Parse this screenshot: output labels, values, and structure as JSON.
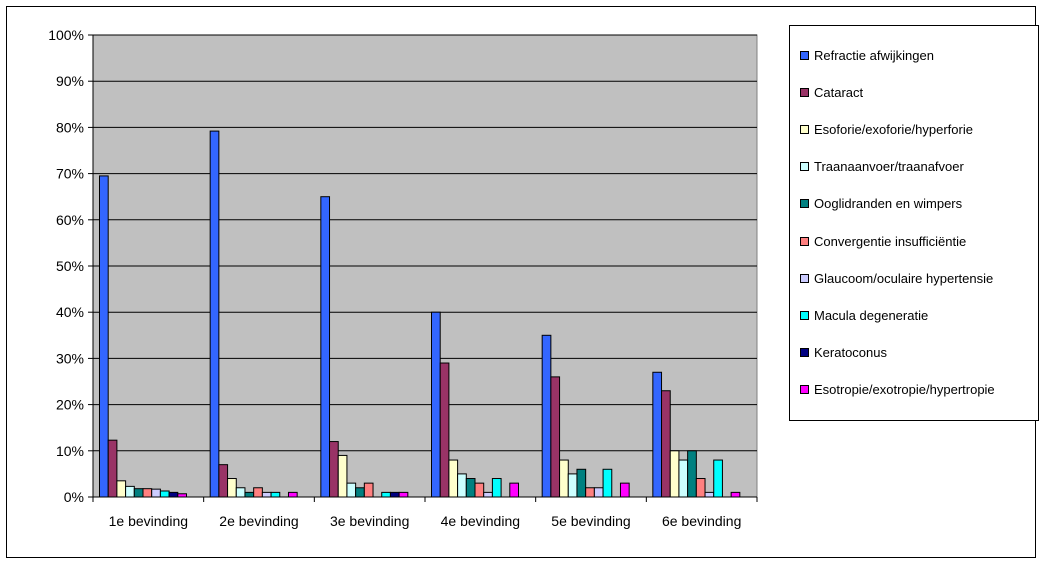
{
  "chart_data": {
    "type": "bar",
    "categories": [
      "1e bevinding",
      "2e bevinding",
      "3e bevinding",
      "4e bevinding",
      "5e bevinding",
      "6e bevinding"
    ],
    "ylim": [
      0,
      100
    ],
    "yticks": [
      "0%",
      "10%",
      "20%",
      "30%",
      "40%",
      "50%",
      "60%",
      "70%",
      "80%",
      "90%",
      "100%"
    ],
    "grid": true,
    "plot_background": "#c0c0c0",
    "legend_position": "right",
    "series": [
      {
        "name": "Refractie afwijkingen",
        "color": "#3366ff",
        "values": [
          69.5,
          79.2,
          65.0,
          40.0,
          35.0,
          27.0
        ]
      },
      {
        "name": "Cataract",
        "color": "#993366",
        "values": [
          12.3,
          7.0,
          12.0,
          29.0,
          26.0,
          23.0
        ]
      },
      {
        "name": "Esoforie/exoforie/hyperforie",
        "color": "#ffffcc",
        "values": [
          3.5,
          4.0,
          9.0,
          8.0,
          8.0,
          10.0
        ]
      },
      {
        "name": "Traanaanvoer/traanafvoer",
        "color": "#ccffff",
        "values": [
          2.3,
          2.0,
          3.0,
          5.0,
          5.0,
          8.0
        ]
      },
      {
        "name": "Ooglidranden en wimpers",
        "color": "#008080",
        "values": [
          1.8,
          1.0,
          2.0,
          4.0,
          6.0,
          10.0
        ]
      },
      {
        "name": "Convergentie insufficiëntie",
        "color": "#ff8080",
        "values": [
          1.8,
          2.0,
          3.0,
          3.0,
          2.0,
          4.0
        ]
      },
      {
        "name": "Glaucoom/oculaire hypertensie",
        "color": "#ccccff",
        "values": [
          1.7,
          1.0,
          0.0,
          1.0,
          2.0,
          1.0
        ]
      },
      {
        "name": "Macula degeneratie",
        "color": "#00ffff",
        "values": [
          1.3,
          1.0,
          1.0,
          4.0,
          6.0,
          8.0
        ]
      },
      {
        "name": "Keratoconus",
        "color": "#000080",
        "values": [
          1.0,
          0.0,
          1.0,
          0.0,
          0.0,
          0.0
        ]
      },
      {
        "name": "Esotropie/exotropie/hypertropie",
        "color": "#ff00ff",
        "values": [
          0.7,
          1.0,
          1.0,
          3.0,
          3.0,
          1.0
        ]
      }
    ]
  }
}
